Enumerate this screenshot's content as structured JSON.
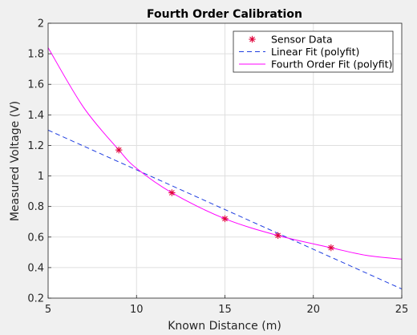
{
  "chart_data": {
    "type": "line",
    "title": "Fourth Order Calibration",
    "xlabel": "Known Distance (m)",
    "ylabel": "Measured Voltage (V)",
    "xlim": [
      5,
      25
    ],
    "ylim": [
      0.2,
      2
    ],
    "xticks": [
      "5",
      "10",
      "15",
      "20",
      "25"
    ],
    "yticks": [
      "0.2",
      "0.4",
      "0.6",
      "0.8",
      "1",
      "1.2",
      "1.4",
      "1.6",
      "1.8",
      "2"
    ],
    "grid": true,
    "legend_position": "top-right",
    "series": [
      {
        "name": "Sensor Data",
        "kind": "scatter",
        "marker": "asterisk",
        "color": "#e0003a",
        "x": [
          9,
          12,
          15,
          18,
          21
        ],
        "y": [
          1.17,
          0.89,
          0.72,
          0.61,
          0.53
        ]
      },
      {
        "name": "Linear Fit (polyfit)",
        "kind": "line",
        "style": "dashed",
        "color": "#1f3ee0",
        "x": [
          5,
          25
        ],
        "y": [
          1.3,
          0.26
        ]
      },
      {
        "name": "Fourth Order Fit (polyfit)",
        "kind": "line",
        "style": "solid",
        "color": "#ff00ff",
        "x": [
          5,
          7,
          9,
          10,
          12,
          15,
          18,
          21,
          23,
          25
        ],
        "y": [
          1.84,
          1.45,
          1.17,
          1.05,
          0.89,
          0.72,
          0.61,
          0.53,
          0.48,
          0.455
        ]
      }
    ]
  }
}
